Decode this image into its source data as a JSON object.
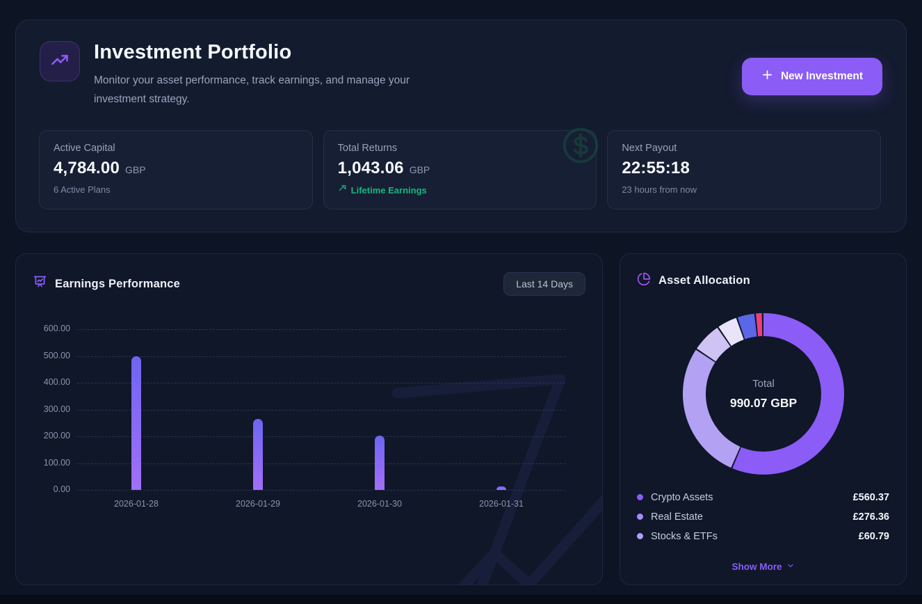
{
  "colors": {
    "accent": "#8b5cf6",
    "positive": "#10b981",
    "bar_top": "#6e65f2",
    "bar_bottom": "#a26ff8"
  },
  "header": {
    "title": "Investment Portfolio",
    "subtitle": "Monitor your asset performance, track earnings, and manage your investment strategy.",
    "new_investment_button": "New Investment"
  },
  "stats": {
    "cards": [
      {
        "label": "Active Capital",
        "value": "4,784.00",
        "unit": "GBP",
        "sub": "6 Active Plans"
      },
      {
        "label": "Total Returns",
        "value": "1,043.06",
        "unit": "GBP",
        "sub": "Lifetime Earnings"
      },
      {
        "label": "Next Payout",
        "value": "22:55:18",
        "unit": "",
        "sub": "23 hours from now"
      }
    ]
  },
  "earnings": {
    "title": "Earnings Performance",
    "range_button": "Last 14 Days"
  },
  "allocation": {
    "title": "Asset Allocation",
    "center_label": "Total",
    "center_value": "990.07 GBP",
    "show_more": "Show More"
  },
  "chart_data": [
    {
      "type": "bar",
      "title": "Earnings Performance",
      "range_label": "Last 14 Days",
      "categories": [
        "2026-01-28",
        "2026-01-29",
        "2026-01-30",
        "2026-01-31"
      ],
      "values": [
        499,
        265,
        203,
        13
      ],
      "ylim": [
        0,
        600
      ],
      "yticks": [
        "600.00",
        "500.00",
        "400.00",
        "300.00",
        "200.00",
        "100.00",
        "0.00"
      ],
      "grid": "dashed-horizontal",
      "legend_position": "none"
    },
    {
      "type": "pie",
      "subtype": "donut",
      "title": "Asset Allocation",
      "center_label": "Total",
      "center_value": "990.07 GBP",
      "segments": [
        {
          "name": "Crypto Assets",
          "amount": "£560.37",
          "percent": 56.6,
          "color": "#8b5cf6",
          "dot": "#8b5cf6",
          "in_legend": true
        },
        {
          "name": "Real Estate",
          "amount": "£276.36",
          "percent": 27.9,
          "color": "#b3a2f3",
          "dot": "#a78bfa",
          "in_legend": true
        },
        {
          "name": "Stocks & ETFs",
          "amount": "£60.79",
          "percent": 6.1,
          "color": "#cfc3f4",
          "dot": "#b29df8",
          "in_legend": true
        },
        {
          "name": "",
          "percent": 4.2,
          "color": "#e9e4fa",
          "in_legend": false
        },
        {
          "name": "",
          "percent": 3.7,
          "color": "#5a67e8",
          "in_legend": false
        },
        {
          "name": "",
          "percent": 1.5,
          "color": "#ed3e7e",
          "in_legend": false
        }
      ],
      "legend_position": "bottom"
    }
  ]
}
